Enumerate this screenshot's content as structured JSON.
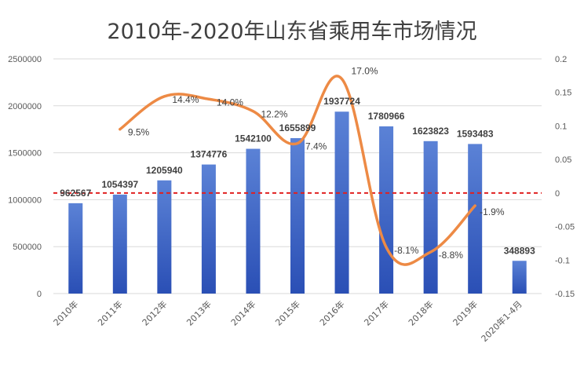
{
  "title": "2010年-2020年山东省乘用车市场情况",
  "chart_data": {
    "type": "bar",
    "title": "2010年-2020年山东省乘用车市场情况",
    "categories": [
      "2010年",
      "2011年",
      "2012年",
      "2013年",
      "2014年",
      "2015年",
      "2016年",
      "2017年",
      "2018年",
      "2019年",
      "2020年1-4月"
    ],
    "series": [
      {
        "type": "bar",
        "axis": "left",
        "values": [
          962567,
          1054397,
          1205940,
          1374776,
          1542100,
          1655899,
          1937724,
          1780966,
          1623823,
          1593483,
          348893
        ],
        "value_labels": [
          "962567",
          "1054397",
          "1205940",
          "1374776",
          "1542100",
          "1655899",
          "1937724",
          "1780966",
          "1623823",
          "1593483",
          "348893"
        ]
      },
      {
        "type": "line",
        "axis": "right",
        "values": [
          null,
          0.095,
          0.144,
          0.14,
          0.122,
          0.074,
          0.17,
          -0.081,
          -0.088,
          -0.019,
          null
        ],
        "value_labels": [
          "",
          "9.5%",
          "14.4%",
          "14.0%",
          "12.2%",
          "7.4%",
          "17.0%",
          "-8.1%",
          "-8.8%",
          "-1.9%",
          ""
        ]
      }
    ],
    "y_left": {
      "ylim": [
        0,
        2500000
      ],
      "ticks": [
        "0",
        "500000",
        "1000000",
        "1500000",
        "2000000",
        "2500000"
      ]
    },
    "y_right": {
      "ylim": [
        -0.15,
        0.2
      ],
      "ticks": [
        "-0.15",
        "-0.1",
        "-0.05",
        "0",
        "0.05",
        "0.1",
        "0.15",
        "0.2"
      ]
    },
    "reference_line": {
      "axis": "right",
      "value": 0,
      "style": "dashed",
      "color": "#e02020"
    },
    "grid": true,
    "colors": {
      "bar_top": "#5b82d6",
      "bar_bottom": "#2a4fb5",
      "line": "#ed8a45",
      "grid": "#d9d9d9"
    }
  }
}
